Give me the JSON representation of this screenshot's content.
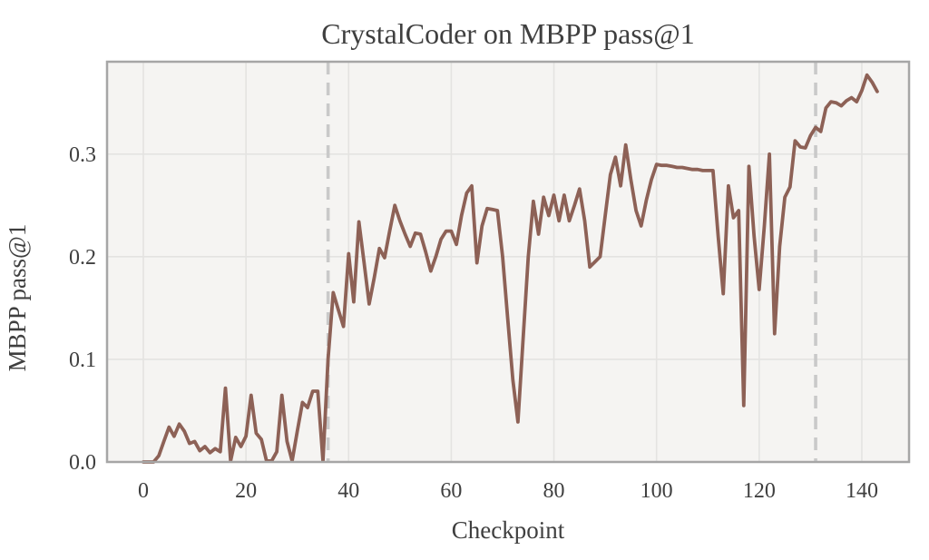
{
  "title": "CrystalCoder on MBPP pass@1",
  "chart_data": {
    "type": "line",
    "title": "CrystalCoder on MBPP pass@1",
    "xlabel": "Checkpoint",
    "ylabel": "MBPP pass@1",
    "x_start": 0,
    "x_step": 1,
    "values": [
      0,
      0,
      0,
      0.006,
      0.02,
      0.034,
      0.025,
      0.037,
      0.03,
      0.018,
      0.02,
      0.011,
      0.015,
      0.009,
      0.013,
      0.01,
      0.072,
      0.001,
      0.024,
      0.015,
      0.025,
      0.065,
      0.028,
      0.022,
      0.001,
      0.001,
      0.01,
      0.065,
      0.02,
      0.001,
      0.03,
      0.058,
      0.053,
      0.069,
      0.069,
      0.001,
      0.1,
      0.165,
      0.148,
      0.132,
      0.203,
      0.156,
      0.234,
      0.195,
      0.154,
      0.18,
      0.208,
      0.199,
      0.225,
      0.25,
      0.235,
      0.222,
      0.21,
      0.223,
      0.222,
      0.205,
      0.186,
      0.2,
      0.217,
      0.225,
      0.225,
      0.212,
      0.24,
      0.262,
      0.269,
      0.194,
      0.23,
      0.247,
      0.246,
      0.245,
      0.2,
      0.14,
      0.08,
      0.039,
      0.12,
      0.2,
      0.254,
      0.222,
      0.258,
      0.24,
      0.26,
      0.235,
      0.26,
      0.235,
      0.25,
      0.266,
      0.235,
      0.19,
      0.195,
      0.2,
      0.24,
      0.28,
      0.297,
      0.269,
      0.309,
      0.275,
      0.245,
      0.23,
      0.255,
      0.275,
      0.29,
      0.289,
      0.289,
      0.288,
      0.287,
      0.287,
      0.286,
      0.285,
      0.285,
      0.284,
      0.284,
      0.284,
      0.22,
      0.164,
      0.269,
      0.238,
      0.245,
      0.055,
      0.288,
      0.22,
      0.168,
      0.23,
      0.3,
      0.125,
      0.21,
      0.258,
      0.268,
      0.313,
      0.307,
      0.306,
      0.318,
      0.326,
      0.322,
      0.345,
      0.351,
      0.35,
      0.347,
      0.352,
      0.355,
      0.351,
      0.362,
      0.377,
      0.37,
      0.361
    ],
    "xlim": [
      -7.07,
      149.2
    ],
    "ylim": [
      0,
      0.39
    ],
    "xticks": [
      0,
      20,
      40,
      60,
      80,
      100,
      120,
      140
    ],
    "xtick_labels": [
      "0",
      "20",
      "40",
      "60",
      "80",
      "100",
      "120",
      "140"
    ],
    "yticks": [
      0.0,
      0.1,
      0.2,
      0.3
    ],
    "ytick_labels": [
      "0.0",
      "0.1",
      "0.2",
      "0.3"
    ],
    "vlines": [
      36,
      131
    ],
    "grid": true,
    "legend_position": "none",
    "line_color": "#8d6156",
    "vline_color": "#c9c9c9",
    "plot_background": "#f5f4f2",
    "grid_color": "#e4e3e1",
    "spine_color": "#a6a6a6",
    "text_color": "#3f3f3f"
  }
}
